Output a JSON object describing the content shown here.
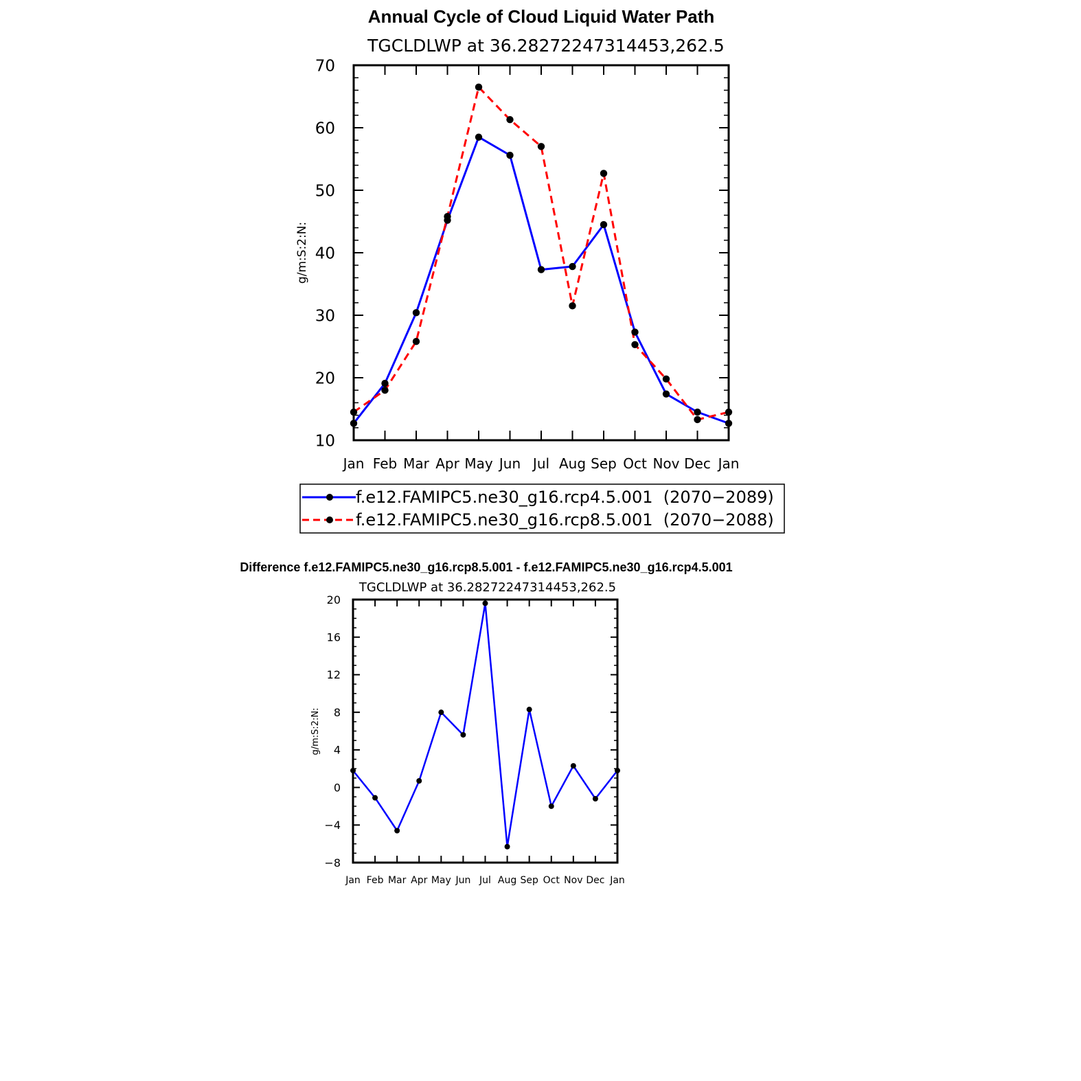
{
  "colors": {
    "series_a": "#0000ff",
    "series_b": "#ff0000",
    "marker": "#000000",
    "axis": "#000000"
  },
  "chart_data": [
    {
      "type": "line",
      "title": "Annual Cycle of Cloud Liquid Water Path",
      "subtitle": "TGCLDLWP  at  36.28272247314453,262.5",
      "ylabel": "g/m:S:2:N:",
      "xlabel": "",
      "categories": [
        "Jan",
        "Feb",
        "Mar",
        "Apr",
        "May",
        "Jun",
        "Jul",
        "Aug",
        "Sep",
        "Oct",
        "Nov",
        "Dec",
        "Jan"
      ],
      "ylim": [
        10,
        70
      ],
      "yticks": [
        "10",
        "20",
        "30",
        "40",
        "50",
        "60",
        "70"
      ],
      "grid": false,
      "legend_position": "bottom",
      "series": [
        {
          "name": "f.e12.FAMIPC5.ne30_g16.rcp4.5.001  (2070−2089)",
          "style": "solid",
          "values": [
            12.7,
            19.1,
            30.4,
            45.2,
            58.5,
            55.6,
            37.3,
            37.8,
            44.5,
            27.3,
            17.4,
            14.5,
            12.7
          ]
        },
        {
          "name": "f.e12.FAMIPC5.ne30_g16.rcp8.5.001  (2070−2088)",
          "style": "dashed",
          "values": [
            14.5,
            18.0,
            25.8,
            45.8,
            66.5,
            61.3,
            57.0,
            31.5,
            52.7,
            25.3,
            19.8,
            13.3,
            14.5
          ]
        }
      ]
    },
    {
      "type": "line",
      "title": "Difference f.e12.FAMIPC5.ne30_g16.rcp8.5.001 - f.e12.FAMIPC5.ne30_g16.rcp4.5.001",
      "subtitle": "TGCLDLWP  at  36.28272247314453,262.5",
      "ylabel": "g/m:S:2:N:",
      "xlabel": "",
      "categories": [
        "Jan",
        "Feb",
        "Mar",
        "Apr",
        "May",
        "Jun",
        "Jul",
        "Aug",
        "Sep",
        "Oct",
        "Nov",
        "Dec",
        "Jan"
      ],
      "ylim": [
        -8,
        20
      ],
      "yticks": [
        "−8",
        "−4",
        "0",
        "4",
        "8",
        "12",
        "16",
        "20"
      ],
      "grid": false,
      "series": [
        {
          "values": [
            1.8,
            -1.1,
            -4.6,
            0.7,
            8.0,
            5.6,
            19.6,
            -6.3,
            8.3,
            -2.0,
            2.3,
            -1.2,
            1.8
          ]
        }
      ]
    }
  ]
}
